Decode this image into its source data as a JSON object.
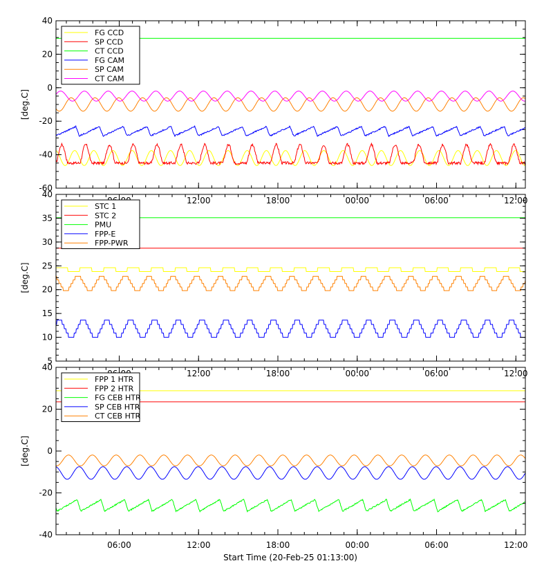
{
  "x_title": "Start Time (20-Feb-25 01:13:00)",
  "chart_data": [
    {
      "type": "line",
      "ylabel": "[deg.C]",
      "xlim": [
        0,
        35.5
      ],
      "ylim": [
        -60,
        40
      ],
      "yticks": [
        -60,
        -40,
        -20,
        0,
        20,
        40
      ],
      "xticks": [
        4.783,
        10.783,
        16.783,
        22.783,
        28.783,
        34.783
      ],
      "xticklabels": [
        "06:00",
        "12:00",
        "18:00",
        "00:00",
        "06:00",
        "12:00"
      ],
      "show_xticklabels": false,
      "legend": "top-left",
      "series": [
        {
          "name": "FG CCD",
          "color": "#ffff00",
          "shape": "sine",
          "base": -42,
          "amp": 4.5,
          "period": 1.45,
          "phase": 0.4,
          "noise": 0
        },
        {
          "name": "SP CCD",
          "color": "#ff0000",
          "shape": "peak",
          "base": -45,
          "amp": 11,
          "period": 1.8,
          "phase": 0,
          "noise": 0.8
        },
        {
          "name": "CT CCD",
          "color": "#00ff00",
          "shape": "flat",
          "base": 29.5,
          "amp": 0,
          "period": 1,
          "phase": 0,
          "noise": 0
        },
        {
          "name": "FG CAM",
          "color": "#0000ff",
          "shape": "sawtooth",
          "base": -26,
          "amp": 2.8,
          "period": 1.8,
          "phase": 0.3,
          "noise": 0.4
        },
        {
          "name": "SP CAM",
          "color": "#ff8000",
          "shape": "sine",
          "base": -10,
          "amp": 4,
          "period": 1.8,
          "phase": 1.1,
          "noise": 0
        },
        {
          "name": "CT CAM",
          "color": "#ff00ff",
          "shape": "sine",
          "base": -5,
          "amp": 3,
          "period": 1.8,
          "phase": 0.1,
          "noise": 0
        }
      ]
    },
    {
      "type": "line",
      "ylabel": "[deg.C]",
      "xlim": [
        0,
        35.5
      ],
      "ylim": [
        5,
        40
      ],
      "yticks": [
        5,
        10,
        15,
        20,
        25,
        30,
        35,
        40
      ],
      "xticks": [
        4.783,
        10.783,
        16.783,
        22.783,
        28.783,
        34.783
      ],
      "xticklabels": [
        "06:00",
        "12:00",
        "18:00",
        "00:00",
        "06:00",
        "12:00"
      ],
      "show_xticklabels": true,
      "legend": "top-left",
      "series": [
        {
          "name": "STC 1",
          "color": "#ffff00",
          "shape": "square",
          "base": 24.2,
          "amp": 0.4,
          "period": 1.8,
          "phase": 0,
          "noise": 0
        },
        {
          "name": "STC 2",
          "color": "#ff0000",
          "shape": "flat",
          "base": 28.7,
          "amp": 0,
          "period": 1,
          "phase": 0,
          "noise": 0
        },
        {
          "name": "PMU",
          "color": "#00ff00",
          "shape": "flat",
          "base": 35.1,
          "amp": 0,
          "period": 1,
          "phase": 0,
          "noise": 0
        },
        {
          "name": "FPP-E",
          "color": "#0000ff",
          "shape": "step",
          "base": 11.8,
          "amp": 1.8,
          "period": 1.8,
          "phase": 0.2,
          "noise": 0
        },
        {
          "name": "FPP-PWR",
          "color": "#ff8000",
          "shape": "step",
          "base": 21.3,
          "amp": 1.5,
          "period": 1.8,
          "phase": 0.6,
          "noise": 0
        }
      ]
    },
    {
      "type": "line",
      "ylabel": "[deg.C]",
      "xlim": [
        0,
        35.5
      ],
      "ylim": [
        -40,
        40
      ],
      "yticks": [
        -40,
        -20,
        0,
        20,
        40
      ],
      "xticks": [
        4.783,
        10.783,
        16.783,
        22.783,
        28.783,
        34.783
      ],
      "xticklabels": [
        "06:00",
        "12:00",
        "18:00",
        "00:00",
        "06:00",
        "12:00"
      ],
      "show_xticklabels": true,
      "legend": "top-left",
      "series": [
        {
          "name": "FPP 1 HTR",
          "color": "#ffff00",
          "shape": "flat",
          "base": 28.8,
          "amp": 0,
          "period": 1,
          "phase": 0,
          "noise": 0
        },
        {
          "name": "FPP 2 HTR",
          "color": "#ff0000",
          "shape": "flat",
          "base": 23.5,
          "amp": 0,
          "period": 1,
          "phase": 0,
          "noise": 0
        },
        {
          "name": "FG CEB HTR",
          "color": "#00ff00",
          "shape": "sawtooth",
          "base": -26,
          "amp": 2.8,
          "period": 1.8,
          "phase": 0.2,
          "noise": 0.3
        },
        {
          "name": "SP CEB HTR",
          "color": "#0000ff",
          "shape": "sine",
          "base": -10.5,
          "amp": 3,
          "period": 1.8,
          "phase": 0.5,
          "noise": 0
        },
        {
          "name": "CT CEB HTR",
          "color": "#ff8000",
          "shape": "sine",
          "base": -4.5,
          "amp": 2.6,
          "period": 1.8,
          "phase": 1.3,
          "noise": 0
        }
      ]
    }
  ]
}
